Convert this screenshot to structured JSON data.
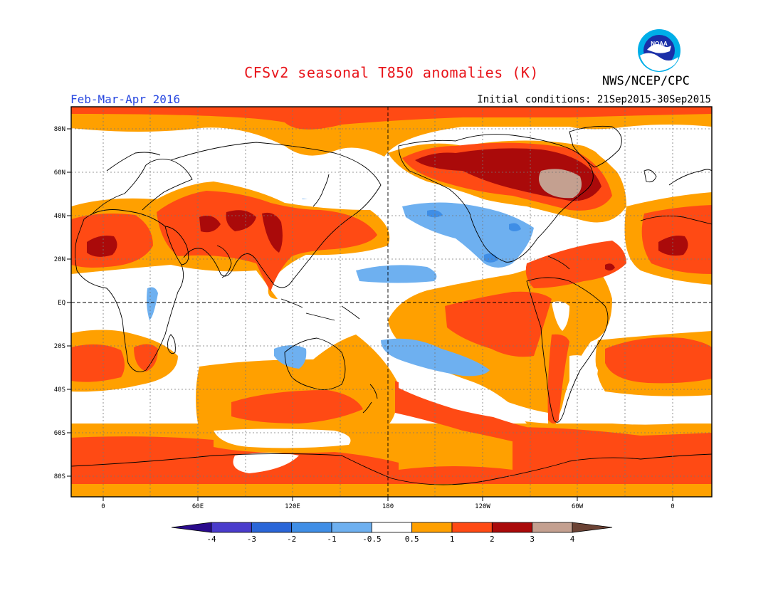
{
  "header": {
    "title": "CFSv2 seasonal T850 anomalies (K)",
    "agency": "NWS/NCEP/CPC",
    "logo_text": "NOAA",
    "season": "Feb-Mar-Apr 2016",
    "initial_conditions": "Initial conditions: 21Sep2015-30Sep2015"
  },
  "map": {
    "lat_labels": [
      "80N",
      "60N",
      "40N",
      "20N",
      "EQ",
      "20S",
      "40S",
      "60S",
      "80S"
    ],
    "lon_labels": [
      "0",
      "60E",
      "120E",
      "180",
      "120W",
      "60W",
      "0"
    ]
  },
  "colorbar": {
    "tick_labels": [
      "-4",
      "-3",
      "-2",
      "-1",
      "-0.5",
      "0.5",
      "1",
      "2",
      "3",
      "4"
    ],
    "colors": [
      "#2a0a8c",
      "#4a3ccc",
      "#2a66d8",
      "#3f8ee6",
      "#6eb0f0",
      "#ffffff",
      "#ffa000",
      "#ff4a14",
      "#aa0a0a",
      "#c4a090",
      "#6b4234"
    ]
  }
}
